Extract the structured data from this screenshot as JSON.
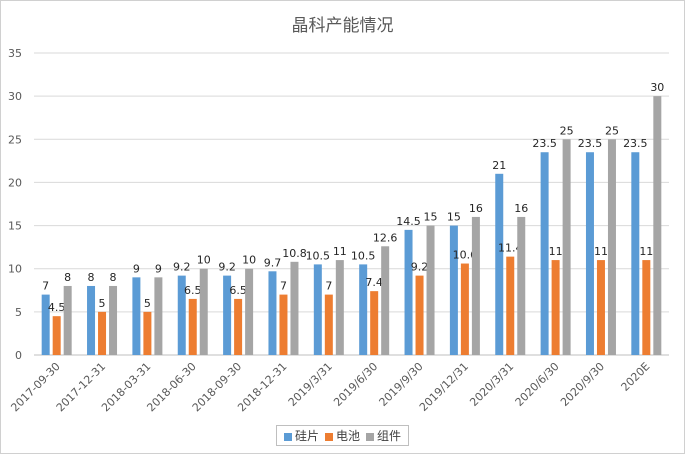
{
  "chart_data": {
    "type": "bar",
    "title": "晶科产能情况",
    "xlabel": "",
    "ylabel": "",
    "ylim": [
      0,
      35
    ],
    "yticks": [
      0,
      5,
      10,
      15,
      20,
      25,
      30,
      35
    ],
    "grid": true,
    "legend_position": "bottom",
    "categories": [
      "2017-09-30",
      "2017-12-31",
      "2018-03-31",
      "2018-06-30",
      "2018-09-30",
      "2018-12-31",
      "2019/3/31",
      "2019/6/30",
      "2019/9/30",
      "2019/12/31",
      "2020/3/31",
      "2020/6/30",
      "2020/9/30",
      "2020E"
    ],
    "series": [
      {
        "name": "硅片",
        "color": "#5b9bd5",
        "values": [
          7,
          8,
          9,
          9.2,
          9.2,
          9.7,
          10.5,
          10.5,
          14.5,
          15,
          21,
          23.5,
          23.5,
          23.5
        ]
      },
      {
        "name": "电池",
        "color": "#ed7d31",
        "values": [
          4.5,
          5,
          5,
          6.5,
          6.5,
          7,
          7,
          7.4,
          9.2,
          10.6,
          11.4,
          11,
          11,
          11
        ]
      },
      {
        "name": "组件",
        "color": "#a5a5a5",
        "values": [
          8,
          8,
          9,
          10,
          10,
          10.8,
          11,
          12.6,
          15,
          16,
          16,
          25,
          25,
          30
        ]
      }
    ]
  }
}
